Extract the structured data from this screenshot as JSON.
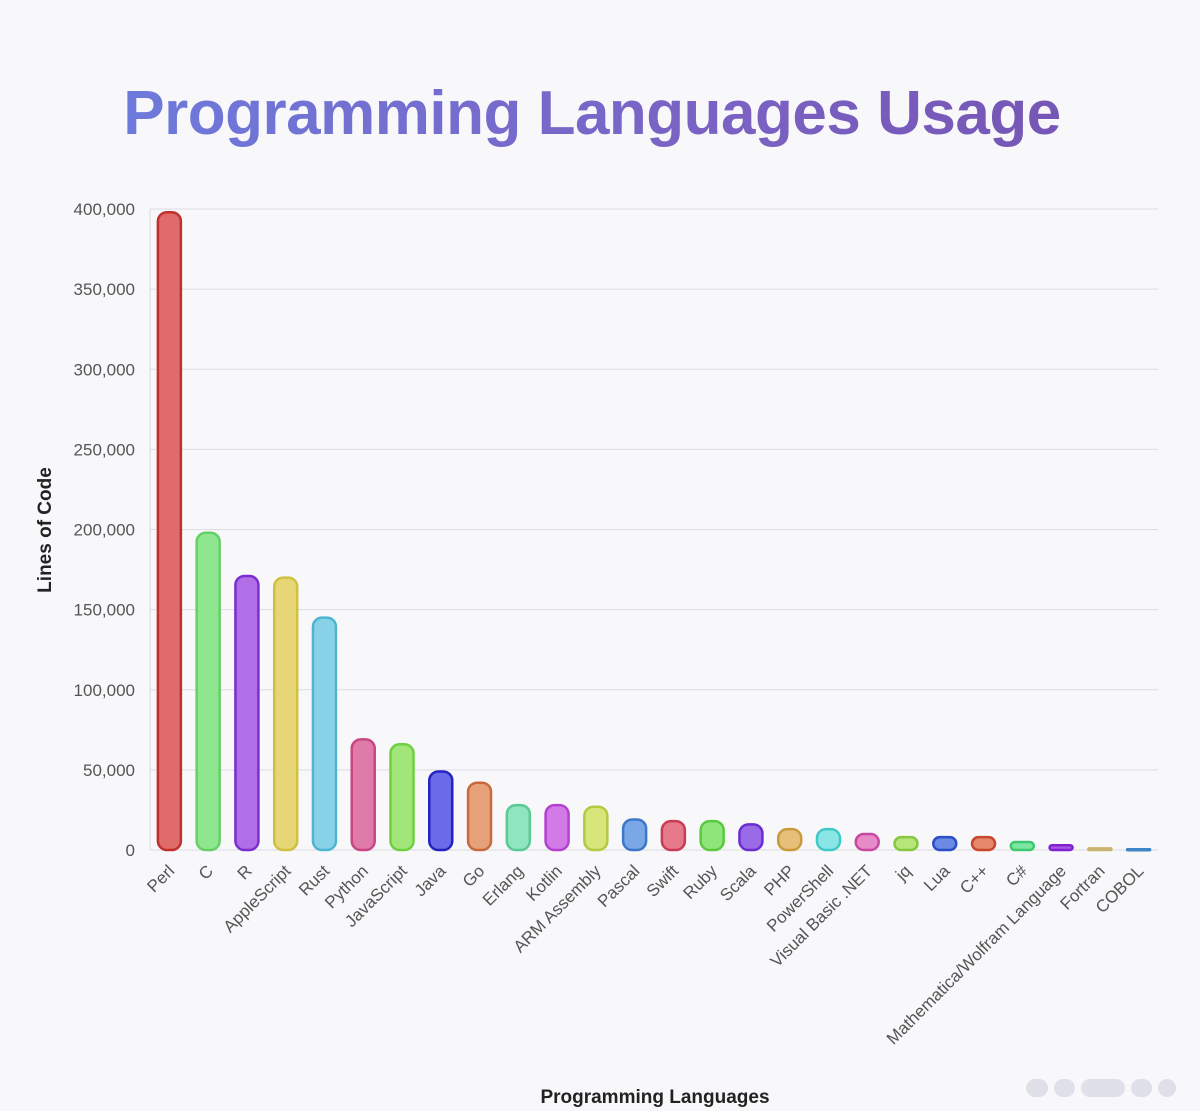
{
  "chart_data": {
    "type": "bar",
    "title": "Programming Languages Usage",
    "xlabel": "Programming Languages",
    "ylabel": "Lines of Code",
    "ylim": [
      0,
      400000
    ],
    "yticks": [
      0,
      50000,
      100000,
      150000,
      200000,
      250000,
      300000,
      350000,
      400000
    ],
    "ytick_labels": [
      "0",
      "50,000",
      "100,000",
      "150,000",
      "200,000",
      "250,000",
      "300,000",
      "350,000",
      "400,000"
    ],
    "grid": true,
    "legend": "none",
    "categories": [
      "Perl",
      "C",
      "R",
      "AppleScript",
      "Rust",
      "Python",
      "JavaScript",
      "Java",
      "Go",
      "Erlang",
      "Kotlin",
      "ARM Assembly",
      "Pascal",
      "Swift",
      "Ruby",
      "Scala",
      "PHP",
      "PowerShell",
      "Visual Basic .NET",
      "jq",
      "Lua",
      "C++",
      "C#",
      "Mathematica/Wolfram Language",
      "Fortran",
      "COBOL"
    ],
    "values": [
      398000,
      198000,
      171000,
      170000,
      145000,
      69000,
      66000,
      49000,
      42000,
      28000,
      28000,
      27000,
      19000,
      18000,
      18000,
      16000,
      13000,
      13000,
      10000,
      8000,
      8000,
      8000,
      5000,
      3000,
      1000,
      500
    ],
    "colors": [
      "#e06b6b",
      "#8ee68e",
      "#b06fe6",
      "#e6d676",
      "#88d2e8",
      "#e07aa8",
      "#a2e67a",
      "#6b6bea",
      "#e6a07a",
      "#8ee6c0",
      "#d27ae6",
      "#d6e67a",
      "#7aa8e6",
      "#e67a8a",
      "#8ee67a",
      "#9a6be6",
      "#e6c07a",
      "#8ae6e6",
      "#e68ac8",
      "#b6e67a",
      "#6b8ae6",
      "#e6886b",
      "#7ae6a0",
      "#a85ae6",
      "#e6d6a0",
      "#7ab6e6"
    ],
    "borders": [
      "#c0302c",
      "#66d066",
      "#7a2ed0",
      "#d0c040",
      "#4eb4d0",
      "#c84684",
      "#6ed040",
      "#2424c0",
      "#c86a3c",
      "#5cc892",
      "#b440d0",
      "#b6c840",
      "#3c78c8",
      "#c83c54",
      "#5cc840",
      "#6a2ed0",
      "#c89a3c",
      "#40c8c8",
      "#c84aa0",
      "#86c840",
      "#2e4ec8",
      "#c8482e",
      "#40c870",
      "#8020d0",
      "#c8b46e",
      "#3c86c8"
    ]
  }
}
